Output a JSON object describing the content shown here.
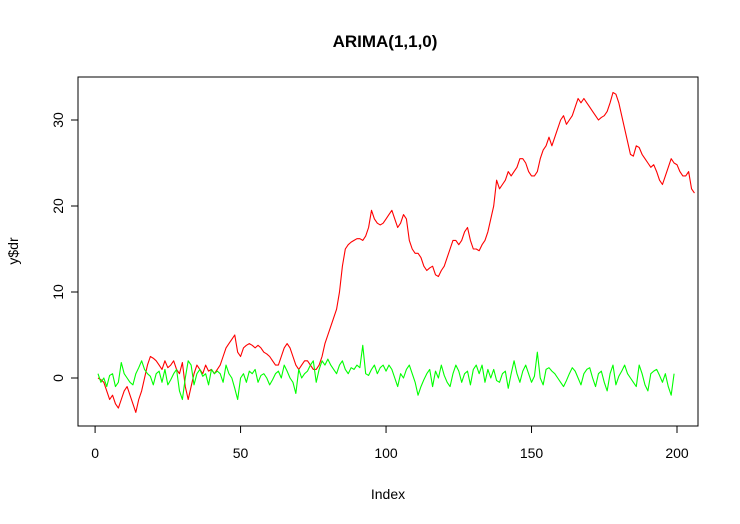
{
  "chart_data": {
    "type": "line",
    "title": "ARIMA(1,1,0)",
    "xlabel": "Index",
    "ylabel": "y$dr",
    "xlim": [
      1,
      200
    ],
    "ylim": [
      -5,
      34
    ],
    "x_ticks": [
      0,
      50,
      100,
      150,
      200
    ],
    "y_ticks": [
      0,
      10,
      20,
      30
    ],
    "grid": false,
    "legend": "none",
    "series_colors": [
      "#ff0000",
      "#00ff00"
    ],
    "series": [
      {
        "values": [
          0,
          -0.2,
          -0.5,
          -1.5,
          -2.5,
          -2,
          -3,
          -3.5,
          -2.5,
          -1.5,
          -1,
          -2,
          -3,
          -4,
          -2.5,
          -1.5,
          0,
          1.5,
          2.5,
          2.3,
          2,
          1.5,
          1,
          2,
          1.2,
          1.5,
          2,
          1,
          0.5,
          1.8,
          -1,
          -2.5,
          -1,
          0.5,
          1.5,
          1,
          0.5,
          1.5,
          0.8,
          1,
          0.5,
          1,
          1.5,
          2.5,
          3.5,
          4,
          4.5,
          5,
          3,
          2.5,
          3.5,
          3.8,
          4,
          3.8,
          3.5,
          3.8,
          3.5,
          3,
          2.8,
          2.5,
          2,
          1.5,
          1.5,
          2.5,
          3.5,
          4,
          3.5,
          2.5,
          1.5,
          1,
          1.5,
          2,
          2,
          1.5,
          1,
          1,
          1.5,
          2.5,
          4,
          5,
          6,
          7,
          8,
          10,
          13,
          15,
          15.5,
          15.8,
          16,
          16.2,
          16.2,
          16,
          16.5,
          17.5,
          19.5,
          18.5,
          18,
          17.8,
          18,
          18.5,
          19,
          19.5,
          18.5,
          17.5,
          18,
          19,
          18.5,
          16,
          15,
          14.5,
          14.5,
          14,
          13,
          12.5,
          12.8,
          13,
          12,
          11.8,
          12.5,
          13,
          14,
          15,
          16,
          16,
          15.5,
          16,
          17,
          17.5,
          16,
          15,
          15,
          14.8,
          15.5,
          16,
          17,
          18.5,
          20,
          23,
          22,
          22.5,
          23,
          24,
          23.5,
          24,
          24.5,
          25.5,
          25.5,
          25,
          24,
          23.5,
          23.5,
          24,
          25.5,
          26.5,
          27,
          28,
          27,
          28,
          29,
          30,
          30.5,
          29.5,
          30,
          30.5,
          31.5,
          32.5,
          32,
          32.5,
          32,
          31.5,
          31,
          30.5,
          30,
          30.3,
          30.5,
          31,
          32,
          33.2,
          33,
          32,
          30.5,
          29,
          27.5,
          26,
          25.8,
          27,
          26.8,
          26,
          25.5,
          25,
          24.5,
          24.8,
          24,
          23,
          22.5,
          23.5,
          24.5,
          25.5,
          25,
          24.8,
          24,
          23.5,
          23.5,
          24,
          22,
          21.5
        ]
      },
      {
        "values": [
          0.5,
          -0.5,
          0,
          -1,
          0.3,
          0.5,
          -1,
          -0.5,
          1.8,
          0.5,
          0,
          -0.5,
          -0.8,
          0.5,
          1.2,
          2,
          1,
          0.5,
          0.2,
          -0.8,
          0.5,
          0.8,
          -0.5,
          1,
          -0.8,
          -0.2,
          0.5,
          1,
          -1.5,
          -2.5,
          0,
          2,
          1.5,
          -0.8,
          0.5,
          1,
          0.2,
          0.5,
          -0.8,
          1,
          0.5,
          0.8,
          0.5,
          -0.5,
          1.5,
          0.5,
          0,
          -1.2,
          -2.5,
          0,
          0.5,
          -0.5,
          0.8,
          0.5,
          1,
          -0.5,
          0.3,
          0.5,
          0,
          -0.8,
          -0.2,
          0.5,
          0.8,
          0,
          1.5,
          0.8,
          0,
          -0.5,
          -1.8,
          1,
          0,
          0.5,
          0.8,
          1.5,
          2,
          -0.5,
          1,
          2,
          1.5,
          2.2,
          1.5,
          1,
          0.5,
          1.5,
          2,
          1,
          0.5,
          1.2,
          1,
          1.5,
          1.2,
          3.8,
          0.5,
          0.3,
          1,
          1.5,
          0.5,
          1.2,
          1.5,
          0.8,
          1.5,
          1,
          0,
          -1,
          0.5,
          0,
          1,
          1.5,
          0.5,
          -0.5,
          -2,
          -1,
          -0.2,
          0.5,
          1,
          -1,
          0.8,
          0,
          1.5,
          0.3,
          -0.5,
          -1,
          0.5,
          1.5,
          0.8,
          -0.5,
          0.5,
          0.8,
          -0.8,
          1,
          1.5,
          0.5,
          1.5,
          -0.5,
          1,
          0,
          1,
          -0.3,
          -0.5,
          0.5,
          0.8,
          -1.2,
          0.5,
          2,
          0.5,
          -0.5,
          0.8,
          1.5,
          0.5,
          -0.5,
          0.2,
          3,
          0,
          -0.8,
          1,
          1.2,
          0.8,
          0.5,
          0,
          -0.5,
          -1,
          -0.3,
          0.5,
          1.2,
          0.8,
          0,
          -0.8,
          0.5,
          1,
          1.2,
          0,
          -1,
          0.5,
          0.8,
          -0.5,
          -1.5,
          0.5,
          1.5,
          -0.8,
          0.2,
          0.8,
          1.5,
          0.5,
          0,
          -0.5,
          -1,
          1.5,
          0.5,
          -0.8,
          -1.5,
          0.5,
          0.8,
          1,
          0.3,
          -0.5,
          0.5,
          -1,
          -2,
          0.5
        ]
      }
    ]
  }
}
